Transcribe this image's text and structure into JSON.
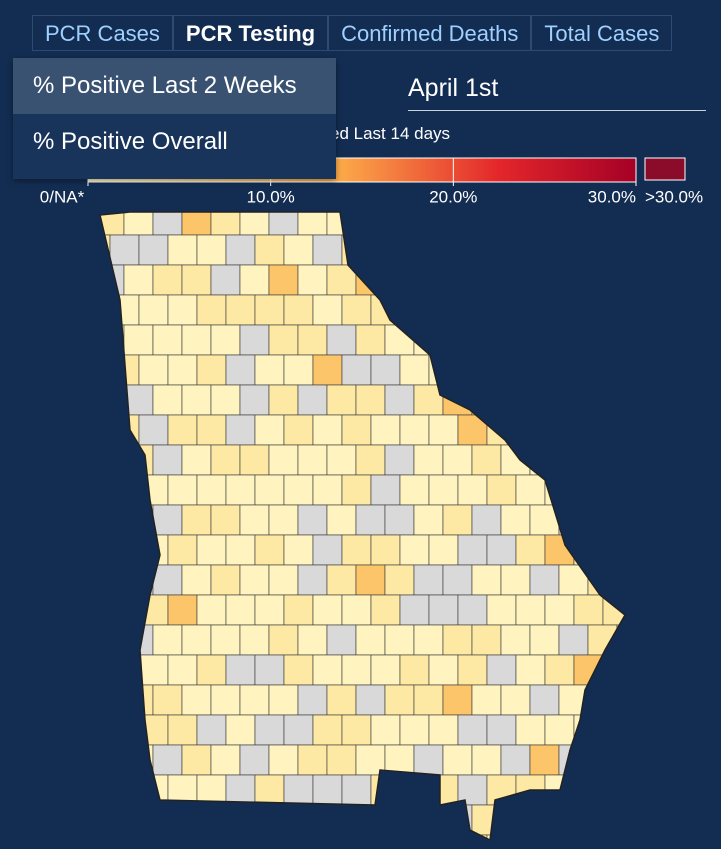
{
  "tabs": [
    "PCR Cases",
    "PCR Testing",
    "Confirmed Deaths",
    "Total Cases"
  ],
  "dropdown": [
    "% Positive Last 2 Weeks",
    "% Positive Overall"
  ],
  "date": "April 1st",
  "legend": {
    "title": "ed Last 14 days",
    "range": [
      0,
      30
    ],
    "ticks": [
      {
        "value": 0,
        "label": "0/NA*"
      },
      {
        "value": 10,
        "label": "10.0%"
      },
      {
        "value": 20,
        "label": "20.0%"
      },
      {
        "value": 30,
        "label": "30.0%"
      }
    ],
    "overflow_label": ">30.0%"
  }
}
